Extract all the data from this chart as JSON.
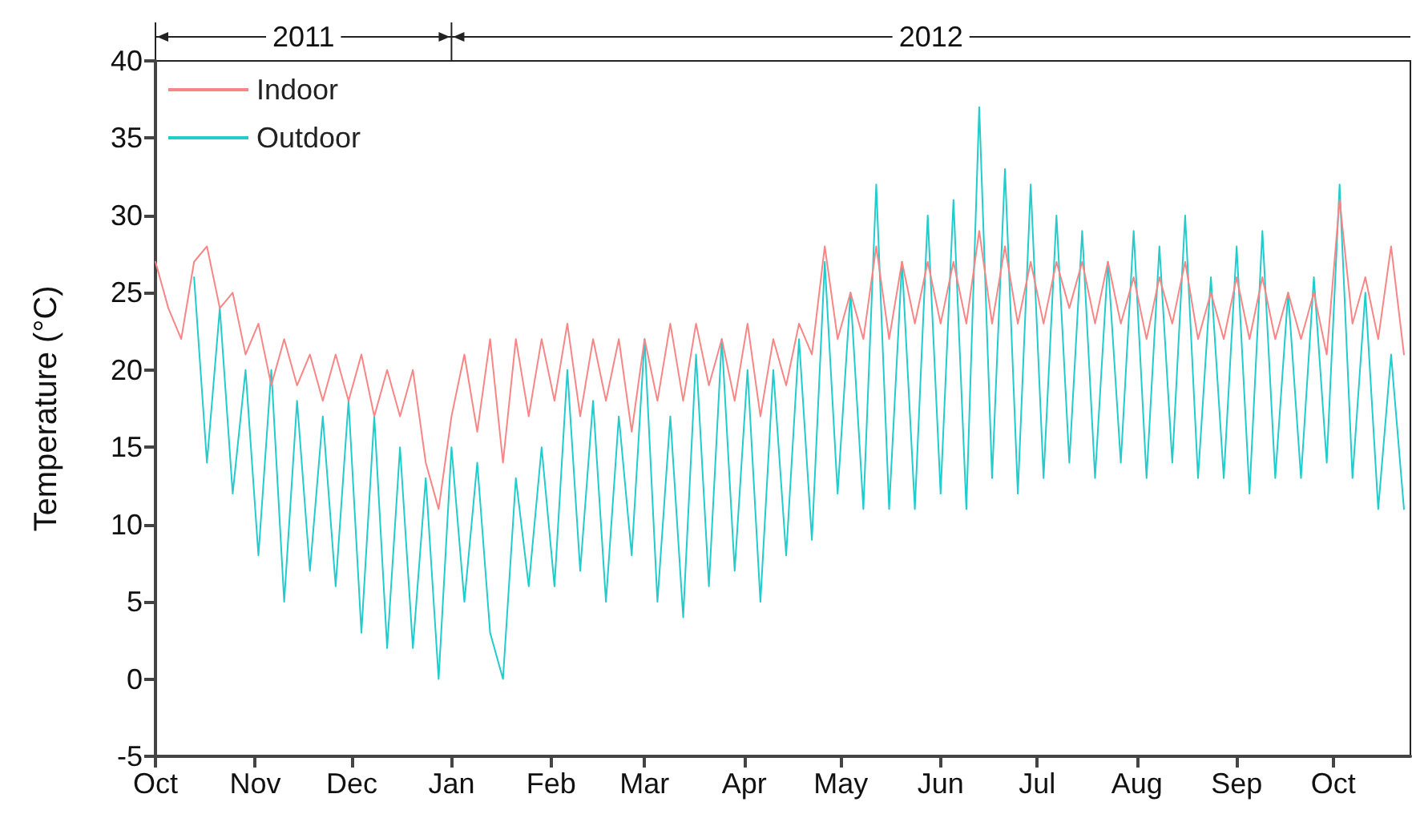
{
  "chart_data": {
    "type": "line",
    "ylabel": "Temperature (°C)",
    "annotations": [
      "2011",
      "2012"
    ],
    "x": [
      "2011-10-01",
      "2011-10-05",
      "2011-10-09",
      "2011-10-13",
      "2011-10-17",
      "2011-10-21",
      "2011-10-25",
      "2011-10-29",
      "2011-11-02",
      "2011-11-06",
      "2011-11-10",
      "2011-11-14",
      "2011-11-18",
      "2011-11-22",
      "2011-11-26",
      "2011-11-30",
      "2011-12-04",
      "2011-12-08",
      "2011-12-12",
      "2011-12-16",
      "2011-12-20",
      "2011-12-24",
      "2011-12-28",
      "2012-01-01",
      "2012-01-05",
      "2012-01-09",
      "2012-01-13",
      "2012-01-17",
      "2012-01-21",
      "2012-01-25",
      "2012-01-29",
      "2012-02-02",
      "2012-02-06",
      "2012-02-10",
      "2012-02-14",
      "2012-02-18",
      "2012-02-22",
      "2012-02-26",
      "2012-03-01",
      "2012-03-05",
      "2012-03-09",
      "2012-03-13",
      "2012-03-17",
      "2012-03-21",
      "2012-03-25",
      "2012-03-29",
      "2012-04-02",
      "2012-04-06",
      "2012-04-10",
      "2012-04-14",
      "2012-04-18",
      "2012-04-22",
      "2012-04-26",
      "2012-04-30",
      "2012-05-04",
      "2012-05-08",
      "2012-05-12",
      "2012-05-16",
      "2012-05-20",
      "2012-05-24",
      "2012-05-28",
      "2012-06-01",
      "2012-06-05",
      "2012-06-09",
      "2012-06-13",
      "2012-06-17",
      "2012-06-21",
      "2012-06-25",
      "2012-06-29",
      "2012-07-03",
      "2012-07-07",
      "2012-07-11",
      "2012-07-15",
      "2012-07-19",
      "2012-07-23",
      "2012-07-27",
      "2012-07-31",
      "2012-08-04",
      "2012-08-08",
      "2012-08-12",
      "2012-08-16",
      "2012-08-20",
      "2012-08-24",
      "2012-08-28",
      "2012-09-01",
      "2012-09-05",
      "2012-09-09",
      "2012-09-13",
      "2012-09-17",
      "2012-09-21",
      "2012-09-25",
      "2012-09-29",
      "2012-10-03",
      "2012-10-07",
      "2012-10-11",
      "2012-10-15",
      "2012-10-19",
      "2012-10-23"
    ],
    "series": [
      {
        "name": "Indoor",
        "color": "#f88686",
        "values": [
          27,
          24,
          22,
          27,
          28,
          24,
          25,
          21,
          23,
          19,
          22,
          19,
          21,
          18,
          21,
          18,
          21,
          17,
          20,
          17,
          20,
          14,
          11,
          17,
          21,
          16,
          22,
          14,
          22,
          17,
          22,
          18,
          23,
          17,
          22,
          18,
          22,
          16,
          22,
          18,
          23,
          18,
          23,
          19,
          22,
          18,
          23,
          17,
          22,
          19,
          23,
          21,
          28,
          22,
          25,
          22,
          28,
          22,
          27,
          23,
          27,
          23,
          27,
          23,
          29,
          23,
          28,
          23,
          27,
          23,
          27,
          24,
          27,
          23,
          27,
          23,
          26,
          22,
          26,
          23,
          27,
          22,
          25,
          22,
          26,
          22,
          26,
          22,
          25,
          22,
          25,
          21,
          31,
          23,
          26,
          22,
          28,
          21
        ]
      },
      {
        "name": "Outdoor",
        "color": "#22cccc",
        "values": [
          null,
          null,
          null,
          26,
          14,
          24,
          12,
          20,
          8,
          20,
          5,
          18,
          7,
          17,
          6,
          18,
          3,
          17,
          2,
          15,
          2,
          13,
          0,
          15,
          5,
          14,
          3,
          0,
          13,
          6,
          15,
          6,
          20,
          7,
          18,
          5,
          17,
          8,
          22,
          5,
          17,
          4,
          21,
          6,
          22,
          7,
          20,
          5,
          20,
          8,
          22,
          9,
          27,
          12,
          25,
          11,
          32,
          11,
          27,
          11,
          30,
          12,
          31,
          11,
          37,
          13,
          33,
          12,
          32,
          13,
          30,
          14,
          29,
          13,
          27,
          14,
          29,
          13,
          28,
          14,
          30,
          13,
          26,
          13,
          28,
          12,
          29,
          13,
          25,
          13,
          26,
          14,
          32,
          13,
          25,
          11,
          21,
          11
        ]
      }
    ],
    "xlim": [
      "2011-10-01",
      "2012-10-25"
    ],
    "xticks": [
      {
        "value": "2011-10-01",
        "label": "Oct"
      },
      {
        "value": "2011-11-01",
        "label": "Nov"
      },
      {
        "value": "2011-12-01",
        "label": "Dec"
      },
      {
        "value": "2012-01-01",
        "label": "Jan"
      },
      {
        "value": "2012-02-01",
        "label": "Feb"
      },
      {
        "value": "2012-03-01",
        "label": "Mar"
      },
      {
        "value": "2012-04-01",
        "label": "Apr"
      },
      {
        "value": "2012-05-01",
        "label": "May"
      },
      {
        "value": "2012-06-01",
        "label": "Jun"
      },
      {
        "value": "2012-07-01",
        "label": "Jul"
      },
      {
        "value": "2012-08-01",
        "label": "Aug"
      },
      {
        "value": "2012-09-01",
        "label": "Sep"
      },
      {
        "value": "2012-10-01",
        "label": "Oct"
      }
    ],
    "ylim": [
      -5,
      40
    ],
    "yticks": [
      -5,
      0,
      5,
      10,
      15,
      20,
      25,
      30,
      35,
      40
    ],
    "grid": false,
    "legend": "top left",
    "marker": "none",
    "line_style": "solid"
  }
}
